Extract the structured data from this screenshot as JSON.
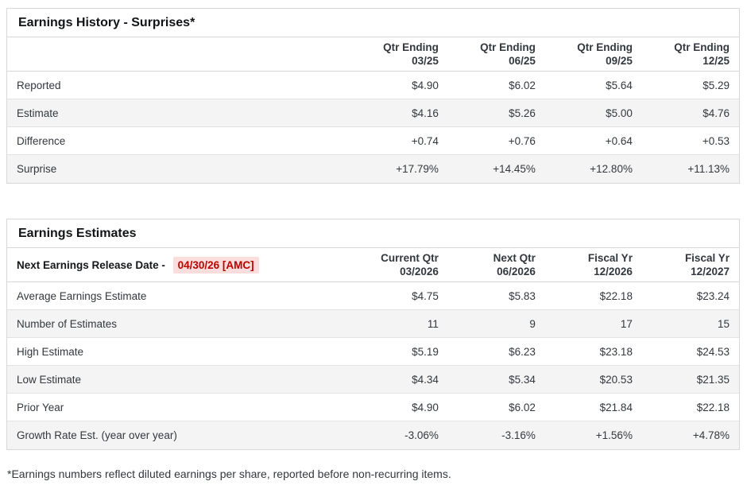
{
  "colors": {
    "positive_value": "#2e9287",
    "negative_value": "#c23b52",
    "release_date_text": "#bb0000",
    "release_date_highlight": "#fbdddd",
    "row_stripe": "#f4f4f4",
    "table_border": "#d8d8d8"
  },
  "earnings_history": {
    "title": "Earnings History - Surprises*",
    "columns": [
      {
        "line1": "Qtr Ending",
        "line2": "03/25"
      },
      {
        "line1": "Qtr Ending",
        "line2": "06/25"
      },
      {
        "line1": "Qtr Ending",
        "line2": "09/25"
      },
      {
        "line1": "Qtr Ending",
        "line2": "12/25"
      }
    ],
    "rows": [
      {
        "label": "Reported",
        "values": [
          "$4.90",
          "$6.02",
          "$5.64",
          "$5.29"
        ],
        "tone": "normal"
      },
      {
        "label": "Estimate",
        "values": [
          "$4.16",
          "$5.26",
          "$5.00",
          "$4.76"
        ],
        "tone": "normal"
      },
      {
        "label": "Difference",
        "values": [
          "+0.74",
          "+0.76",
          "+0.64",
          "+0.53"
        ],
        "tone": "positive"
      },
      {
        "label": "Surprise",
        "values": [
          "+17.79%",
          "+14.45%",
          "+12.80%",
          "+11.13%"
        ],
        "tone": "positive"
      }
    ]
  },
  "earnings_estimates": {
    "title": "Earnings Estimates",
    "release_date_label": "Next Earnings Release Date -",
    "release_date_value": "04/30/26 [AMC]",
    "columns": [
      {
        "line1": "Current Qtr",
        "line2": "03/2026"
      },
      {
        "line1": "Next Qtr",
        "line2": "06/2026"
      },
      {
        "line1": "Fiscal Yr",
        "line2": "12/2026"
      },
      {
        "line1": "Fiscal Yr",
        "line2": "12/2027"
      }
    ],
    "rows": [
      {
        "label": "Average Earnings Estimate",
        "values": [
          "$4.75",
          "$5.83",
          "$22.18",
          "$23.24"
        ],
        "tone": "normal"
      },
      {
        "label": "Number of Estimates",
        "values": [
          "11",
          "9",
          "17",
          "15"
        ],
        "tone": "normal"
      },
      {
        "label": "High Estimate",
        "values": [
          "$5.19",
          "$6.23",
          "$23.18",
          "$24.53"
        ],
        "tone": "normal"
      },
      {
        "label": "Low Estimate",
        "values": [
          "$4.34",
          "$5.34",
          "$20.53",
          "$21.35"
        ],
        "tone": "normal"
      },
      {
        "label": "Prior Year",
        "values": [
          "$4.90",
          "$6.02",
          "$21.84",
          "$22.18"
        ],
        "tone": "normal"
      },
      {
        "label": "Growth Rate Est. (year over year)",
        "values": [
          "-3.06%",
          "-3.16%",
          "+1.56%",
          "+4.78%"
        ],
        "value_tones": [
          "negative",
          "negative",
          "positive",
          "positive"
        ]
      }
    ]
  },
  "footnote": "*Earnings numbers reflect diluted earnings per share, reported before non-recurring items."
}
